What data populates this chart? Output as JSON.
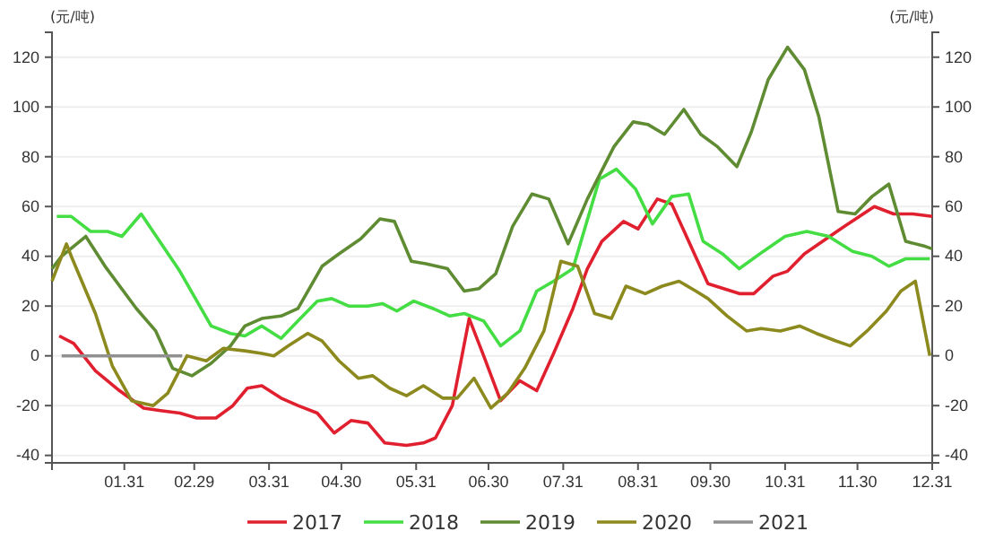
{
  "chart_data": {
    "type": "line",
    "ylabel": "(元/吨)",
    "y2label": "(元/吨)",
    "xlim": [
      "--01-01",
      "--12-31"
    ],
    "xticks": [
      {
        "value": "--01-31",
        "label": "01.31"
      },
      {
        "value": "--02-29",
        "label": "02.29"
      },
      {
        "value": "--03-31",
        "label": "03.31"
      },
      {
        "value": "--04-30",
        "label": "04.30"
      },
      {
        "value": "--05-31",
        "label": "05.31"
      },
      {
        "value": "--06-30",
        "label": "06.30"
      },
      {
        "value": "--07-31",
        "label": "07.31"
      },
      {
        "value": "--08-31",
        "label": "08.31"
      },
      {
        "value": "--09-30",
        "label": "09.30"
      },
      {
        "value": "--10-31",
        "label": "10.31"
      },
      {
        "value": "--11-30",
        "label": "11.30"
      },
      {
        "value": "--12-31",
        "label": "12.31"
      }
    ],
    "ylim": [
      -43,
      130
    ],
    "yticks": [
      -40,
      -20,
      0,
      20,
      40,
      60,
      80,
      100,
      120
    ],
    "y2lim": [
      -43,
      130
    ],
    "y2ticks": [
      -40,
      -20,
      0,
      20,
      40,
      60,
      80,
      100,
      120
    ],
    "grid": "y",
    "legend": "bottom",
    "marker": "none",
    "line_style": "solid",
    "series": [
      {
        "name": "2017",
        "color": "#e0202e",
        "x": [
          "--01-04",
          "--01-10",
          "--01-19",
          "--01-29",
          "--02-08",
          "--02-15",
          "--02-23",
          "--03-01",
          "--03-09",
          "--03-16",
          "--03-22",
          "--03-28",
          "--04-05",
          "--04-12",
          "--04-20",
          "--04-27",
          "--05-04",
          "--05-11",
          "--05-18",
          "--05-27",
          "--06-03",
          "--06-08",
          "--06-15",
          "--06-22",
          "--06-28",
          "--07-05",
          "--07-13",
          "--07-20",
          "--07-27",
          "--08-04",
          "--08-10",
          "--08-16",
          "--08-25",
          "--08-31",
          "--09-08",
          "--09-14",
          "--09-29",
          "--10-12",
          "--10-18",
          "--10-26",
          "--11-01",
          "--11-08",
          "--11-23",
          "--12-07",
          "--12-15",
          "--12-23",
          "--12-31"
        ],
        "values": [
          8,
          5,
          -6,
          -14,
          -21,
          -22,
          -23,
          -25,
          -25,
          -20,
          -13,
          -12,
          -17,
          -20,
          -23,
          -31,
          -26,
          -27,
          -35,
          -36,
          -35,
          -33,
          -20,
          15,
          0,
          -18,
          -10,
          -14,
          1,
          19,
          35,
          46,
          54,
          51,
          63,
          61,
          29,
          25,
          25,
          32,
          34,
          41,
          51,
          60,
          57,
          57,
          56
        ]
      },
      {
        "name": "2018",
        "color": "#44dd44",
        "x": [
          "--01-03",
          "--01-09",
          "--01-17",
          "--01-24",
          "--01-30",
          "--02-07",
          "--02-23",
          "--03-07",
          "--03-15",
          "--03-21",
          "--03-28",
          "--04-05",
          "--04-12",
          "--04-20",
          "--04-26",
          "--05-03",
          "--05-11",
          "--05-17",
          "--05-23",
          "--05-30",
          "--06-07",
          "--06-14",
          "--06-20",
          "--06-28",
          "--07-05",
          "--07-13",
          "--07-20",
          "--07-27",
          "--08-04",
          "--08-15",
          "--08-22",
          "--08-30",
          "--09-06",
          "--09-14",
          "--09-21",
          "--09-27",
          "--10-05",
          "--10-12",
          "--10-22",
          "--10-31",
          "--11-09",
          "--11-18",
          "--11-28",
          "--12-06",
          "--12-13",
          "--12-20",
          "--12-30"
        ],
        "values": [
          56,
          56,
          50,
          50,
          48,
          57,
          34,
          12,
          9,
          8,
          12,
          7,
          14,
          22,
          23,
          20,
          20,
          21,
          18,
          22,
          19,
          16,
          17,
          14,
          4,
          10,
          26,
          30,
          35,
          71,
          75,
          67,
          53,
          64,
          65,
          46,
          41,
          35,
          42,
          48,
          50,
          48,
          42,
          40,
          36,
          39,
          39
        ]
      },
      {
        "name": "2019",
        "color": "#5f8c32",
        "x": [
          "--01-01",
          "--01-05",
          "--01-15",
          "--01-23",
          "--02-05",
          "--02-13",
          "--02-20",
          "--02-28",
          "--03-07",
          "--03-15",
          "--03-21",
          "--03-28",
          "--04-05",
          "--04-12",
          "--04-22",
          "--04-29",
          "--05-08",
          "--05-16",
          "--05-22",
          "--05-29",
          "--06-04",
          "--06-13",
          "--06-20",
          "--06-26",
          "--07-03",
          "--07-10",
          "--07-18",
          "--07-25",
          "--08-02",
          "--08-10",
          "--08-21",
          "--08-29",
          "--09-04",
          "--09-11",
          "--09-19",
          "--09-26",
          "--10-03",
          "--10-11",
          "--10-17",
          "--10-24",
          "--11-01",
          "--11-08",
          "--11-14",
          "--11-22",
          "--11-29",
          "--12-06",
          "--12-13",
          "--12-20",
          "--12-28",
          "--12-31"
        ],
        "values": [
          35,
          40,
          48,
          36,
          19,
          10,
          -5,
          -8,
          -3,
          4,
          12,
          15,
          16,
          19,
          36,
          41,
          47,
          55,
          54,
          38,
          37,
          35,
          26,
          27,
          33,
          52,
          65,
          63,
          45,
          63,
          84,
          94,
          93,
          89,
          99,
          89,
          84,
          76,
          90,
          111,
          124,
          115,
          96,
          58,
          57,
          64,
          69,
          46,
          44,
          43
        ]
      },
      {
        "name": "2020",
        "color": "#8c8a1e",
        "x": [
          "--01-01",
          "--01-07",
          "--01-09",
          "--01-19",
          "--01-26",
          "--02-03",
          "--02-12",
          "--02-18",
          "--02-26",
          "--03-05",
          "--03-12",
          "--03-21",
          "--03-28",
          "--04-02",
          "--04-08",
          "--04-16",
          "--04-22",
          "--04-29",
          "--05-07",
          "--05-13",
          "--05-20",
          "--05-27",
          "--06-03",
          "--06-11",
          "--06-17",
          "--06-24",
          "--07-01",
          "--07-08",
          "--07-15",
          "--07-23",
          "--07-30",
          "--08-06",
          "--08-13",
          "--08-20",
          "--08-26",
          "--09-03",
          "--09-10",
          "--09-17",
          "--09-24",
          "--09-29",
          "--10-07",
          "--10-15",
          "--10-21",
          "--10-29",
          "--11-06",
          "--11-13",
          "--11-21",
          "--11-27",
          "--12-04",
          "--12-12",
          "--12-18",
          "--12-24",
          "--12-30"
        ],
        "values": [
          30,
          45,
          40,
          17,
          -4,
          -18,
          -20,
          -15,
          0,
          -2,
          3,
          2,
          1,
          0,
          4,
          9,
          6,
          -2,
          -9,
          -8,
          -13,
          -16,
          -12,
          -17,
          -17,
          -9,
          -21,
          -15,
          -5,
          10,
          38,
          36,
          17,
          15,
          28,
          25,
          28,
          30,
          26,
          23,
          16,
          10,
          11,
          10,
          12,
          9,
          6,
          4,
          10,
          18,
          26,
          30,
          0
        ]
      },
      {
        "name": "2021",
        "color": "#909090",
        "x": [
          "--01-05",
          "--01-12",
          "--01-19",
          "--01-26",
          "--02-02",
          "--02-09",
          "--02-16",
          "--02-24"
        ],
        "values": [
          0,
          0,
          0,
          0,
          0,
          0,
          0,
          0
        ]
      }
    ]
  }
}
